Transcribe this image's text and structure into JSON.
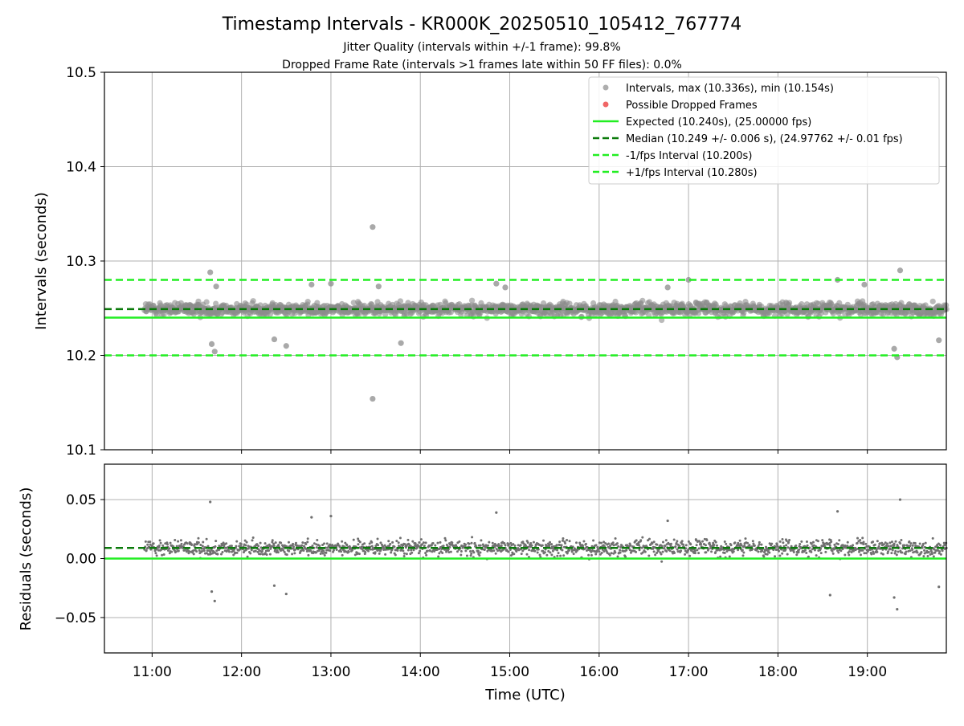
{
  "chart_data": [
    {
      "type": "scatter",
      "title": "Timestamp Intervals - KR000K_20250510_105412_767774",
      "subtitle_lines": [
        "Jitter Quality (intervals within +/-1 frame): 99.8%",
        "Dropped Frame Rate (intervals >1 frames late within 50 FF files): 0.0%"
      ],
      "xlabel": "",
      "ylabel": "Intervals (seconds)",
      "ylim": [
        10.1,
        10.5
      ],
      "yticks": [
        10.1,
        10.2,
        10.3,
        10.4,
        10.5
      ],
      "ytick_labels": [
        "10.1",
        "10.2",
        "10.3",
        "10.4",
        "10.5"
      ],
      "grid": true,
      "legend_position": "top-right",
      "point_color": "#8c8c8c",
      "dropped_color": "#f06666",
      "expected_color": "#22ee22",
      "median_color": "#0a7a0a",
      "series": [
        {
          "name": "Intervals, max (10.336s), min (10.154s)",
          "kind": "scatter",
          "time_range": [
            "10:55",
            "19:53"
          ],
          "typical_range": [
            10.235,
            10.262
          ],
          "outlier_points": [
            {
              "x": "11:39",
              "y": 10.288
            },
            {
              "x": "11:40",
              "y": 10.212
            },
            {
              "x": "11:42",
              "y": 10.204
            },
            {
              "x": "11:43",
              "y": 10.273
            },
            {
              "x": "12:22",
              "y": 10.217
            },
            {
              "x": "12:30",
              "y": 10.21
            },
            {
              "x": "12:47",
              "y": 10.275
            },
            {
              "x": "13:00",
              "y": 10.276
            },
            {
              "x": "13:28",
              "y": 10.336
            },
            {
              "x": "13:28",
              "y": 10.154
            },
            {
              "x": "13:32",
              "y": 10.273
            },
            {
              "x": "13:47",
              "y": 10.213
            },
            {
              "x": "14:51",
              "y": 10.276
            },
            {
              "x": "14:57",
              "y": 10.272
            },
            {
              "x": "16:46",
              "y": 10.272
            },
            {
              "x": "17:00",
              "y": 10.28
            },
            {
              "x": "18:40",
              "y": 10.28
            },
            {
              "x": "18:58",
              "y": 10.275
            },
            {
              "x": "19:18",
              "y": 10.207
            },
            {
              "x": "19:20",
              "y": 10.198
            },
            {
              "x": "19:22",
              "y": 10.29
            },
            {
              "x": "19:48",
              "y": 10.216
            }
          ]
        },
        {
          "name": "Possible Dropped Frames",
          "kind": "scatter",
          "points": []
        },
        {
          "name": "Expected (10.240s), (25.00000 fps)",
          "kind": "hline",
          "y": 10.24,
          "style": "solid"
        },
        {
          "name": "Median (10.249 +/- 0.006 s), (24.97762 +/- 0.01 fps)",
          "kind": "hline",
          "y": 10.249,
          "style": "dashed"
        },
        {
          "name": "-1/fps Interval (10.200s)",
          "kind": "hline",
          "y": 10.2,
          "style": "dashed"
        },
        {
          "name": "+1/fps Interval (10.280s)",
          "kind": "hline",
          "y": 10.28,
          "style": "dashed"
        }
      ]
    },
    {
      "type": "scatter",
      "title": "",
      "xlabel": "Time (UTC)",
      "ylabel": "Residuals (seconds)",
      "xlim": [
        "10:28",
        "19:53"
      ],
      "xticks": [
        "11:00",
        "12:00",
        "13:00",
        "14:00",
        "15:00",
        "16:00",
        "17:00",
        "18:00",
        "19:00"
      ],
      "ylim": [
        -0.08,
        0.08
      ],
      "yticks": [
        0.05,
        0.0,
        -0.05
      ],
      "ytick_labels": [
        "0.05",
        "0.00",
        "−0.05"
      ],
      "grid": true,
      "series": [
        {
          "name": "",
          "kind": "scatter",
          "typical_range": [
            -0.005,
            0.022
          ],
          "outlier_points": [
            {
              "x": "11:39",
              "y": 0.048
            },
            {
              "x": "11:40",
              "y": -0.028
            },
            {
              "x": "11:42",
              "y": -0.036
            },
            {
              "x": "12:22",
              "y": -0.023
            },
            {
              "x": "12:30",
              "y": -0.03
            },
            {
              "x": "12:47",
              "y": 0.035
            },
            {
              "x": "13:00",
              "y": 0.036
            },
            {
              "x": "14:51",
              "y": 0.039
            },
            {
              "x": "16:46",
              "y": 0.032
            },
            {
              "x": "18:40",
              "y": 0.04
            },
            {
              "x": "18:35",
              "y": -0.031
            },
            {
              "x": "19:18",
              "y": -0.033
            },
            {
              "x": "19:20",
              "y": -0.043
            },
            {
              "x": "19:22",
              "y": 0.05
            },
            {
              "x": "19:48",
              "y": -0.024
            }
          ]
        },
        {
          "name": "",
          "kind": "hline",
          "y": 0.009,
          "style": "dashed"
        },
        {
          "name": "",
          "kind": "hline",
          "y": 0.0,
          "style": "solid"
        }
      ]
    }
  ]
}
